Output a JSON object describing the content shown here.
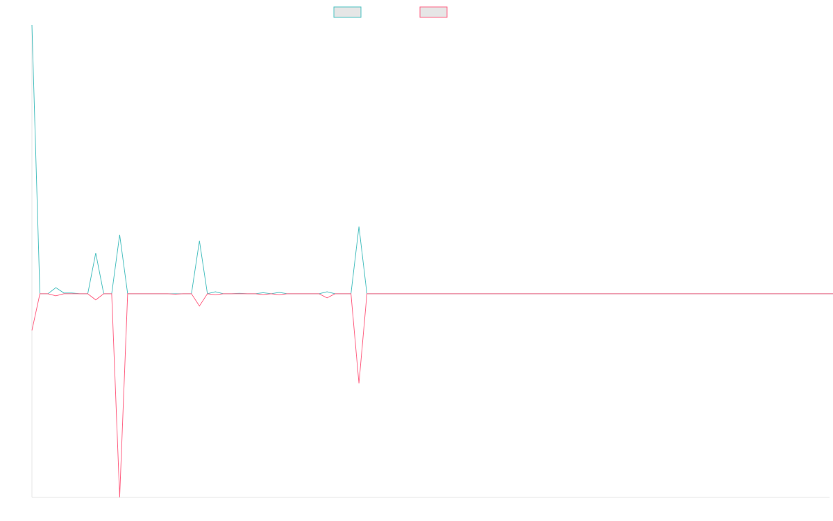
{
  "chart_data": {
    "type": "line",
    "title": "",
    "xlabel": "",
    "ylabel": "",
    "x_count": 101,
    "ylim": [
      -1.0,
      1.32
    ],
    "grid": false,
    "legend_position": "top-center",
    "series": [
      {
        "color": "#4bc0c0",
        "fill": "#e6e6e6",
        "values": [
          1.32,
          0.0,
          0.0,
          0.03,
          0.004,
          0.004,
          0.0,
          0.0,
          0.2,
          0.0,
          0.0,
          0.29,
          0.0,
          0.0,
          0.0,
          0.0,
          0.0,
          0.0,
          0.0,
          0.0,
          0.0,
          0.26,
          0.0,
          0.01,
          0.0,
          0.0,
          0.002,
          0.0,
          0.0,
          0.005,
          0.0,
          0.007,
          0.0,
          0.0,
          0.0,
          0.0,
          0.0,
          0.01,
          0.0,
          0.0,
          0.0,
          0.33,
          0.0,
          0.0,
          0.0,
          0.0,
          0.0,
          0.0,
          0.0,
          0.0,
          0.0,
          0.0,
          0.0,
          0.0,
          0.0,
          0.0,
          0.0,
          0.0,
          0.0,
          0.0,
          0.0,
          0.0,
          0.0,
          0.0,
          0.0,
          0.0,
          0.0,
          0.0,
          0.0,
          0.0,
          0.0,
          0.0,
          0.0,
          0.0,
          0.0,
          0.0,
          0.0,
          0.0,
          0.0,
          0.0,
          0.0,
          0.0,
          0.0,
          0.0,
          0.0,
          0.0,
          0.0,
          0.0,
          0.0,
          0.0,
          0.0,
          0.0,
          0.0,
          0.0,
          0.0,
          0.0,
          0.0,
          0.0,
          0.0,
          0.0,
          0.0,
          0.0
        ]
      },
      {
        "color": "#ff6384",
        "fill": "#e6e6e6",
        "values": [
          -0.18,
          0.0,
          0.0,
          -0.01,
          0.0,
          0.0,
          0.0,
          0.0,
          -0.03,
          0.0,
          0.0,
          -1.0,
          0.0,
          0.0,
          0.0,
          0.0,
          0.0,
          0.0,
          -0.002,
          0.0,
          0.0,
          -0.06,
          0.0,
          -0.005,
          0.0,
          0.0,
          0.0,
          0.0,
          0.0,
          -0.004,
          0.0,
          -0.005,
          0.0,
          0.0,
          0.0,
          0.0,
          0.0,
          -0.02,
          0.0,
          0.0,
          0.0,
          -0.44,
          0.0,
          0.0,
          0.0,
          0.0,
          0.0,
          0.0,
          0.0,
          0.0,
          0.0,
          0.0,
          0.0,
          0.0,
          0.0,
          0.0,
          0.0,
          0.0,
          0.0,
          0.0,
          0.0,
          0.0,
          0.0,
          0.0,
          0.0,
          0.0,
          0.0,
          0.0,
          0.0,
          0.0,
          0.0,
          0.0,
          0.0,
          0.0,
          0.0,
          0.0,
          0.0,
          0.0,
          0.0,
          0.0,
          0.0,
          0.0,
          0.0,
          0.0,
          0.0,
          0.0,
          0.0,
          0.0,
          0.0,
          0.0,
          0.0,
          0.0,
          0.0,
          0.0,
          0.0,
          0.0,
          0.0,
          0.0,
          0.0,
          0.0,
          0.0,
          0.0
        ]
      }
    ]
  }
}
